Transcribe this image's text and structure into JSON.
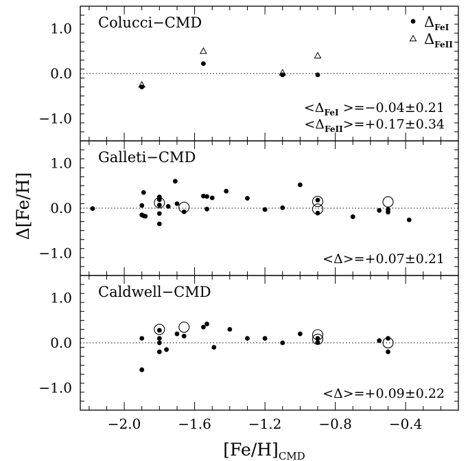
{
  "figure": {
    "y_label_main": "Δ[Fe/H]",
    "x_label_main": "[Fe/H]",
    "x_label_sub": "CMD"
  },
  "chart_data": [
    {
      "type": "scatter",
      "title": "Colucci−CMD",
      "xlim": [
        -2.25,
        -0.1
      ],
      "ylim": [
        -1.5,
        1.5
      ],
      "x_ticks": [
        -2.0,
        -1.6,
        -1.2,
        -0.8,
        -0.4
      ],
      "y_ticks": [
        1.0,
        0.0,
        -1.0
      ],
      "y_tick_labels": [
        "1.0",
        "0.0",
        "−1.0"
      ],
      "zero_line": true,
      "legend_position": "top-right",
      "legend": [
        {
          "symbol": "filled-circle",
          "main": "Δ",
          "sub": "FeI"
        },
        {
          "symbol": "open-triangle",
          "main": "Δ",
          "sub": "FeII"
        }
      ],
      "annotations": [
        {
          "a": "<Δ",
          "sub": "FeI",
          "b": " >=−0.04±0.21"
        },
        {
          "a": "<Δ",
          "sub": "FeII",
          "b": ">=+0.17±0.34"
        }
      ],
      "series": [
        {
          "name": "ΔFeI",
          "marker": "filled-circle",
          "x": [
            -1.9,
            -1.55,
            -1.1,
            -0.9
          ],
          "y": [
            -0.3,
            0.22,
            -0.03,
            -0.03
          ]
        },
        {
          "name": "ΔFeII",
          "marker": "open-triangle",
          "x": [
            -1.9,
            -1.55,
            -1.1,
            -0.9
          ],
          "y": [
            -0.25,
            0.5,
            0.02,
            0.4
          ]
        }
      ]
    },
    {
      "type": "scatter",
      "title": "Galleti−CMD",
      "xlim": [
        -2.25,
        -0.1
      ],
      "ylim": [
        -1.5,
        1.5
      ],
      "x_ticks": [
        -2.0,
        -1.6,
        -1.2,
        -0.8,
        -0.4
      ],
      "y_ticks": [
        1.0,
        0.0,
        -1.0
      ],
      "y_tick_labels": [
        "1.0",
        "0.0",
        "−1.0"
      ],
      "zero_line": true,
      "annotations": [
        {
          "a": "<Δ>=+0.07±0.21",
          "sub": "",
          "b": ""
        }
      ],
      "series": [
        {
          "marker": "filled-circle",
          "x": [
            -2.18,
            -1.9,
            -1.9,
            -1.89,
            -1.89,
            -1.88,
            -1.8,
            -1.8,
            -1.8,
            -1.8,
            -1.8,
            -1.75,
            -1.71,
            -1.7,
            -1.66,
            -1.55,
            -1.53,
            -1.53,
            -1.5,
            -1.42,
            -1.3,
            -1.2,
            -1.1,
            -1.0,
            -0.9,
            -0.9,
            -0.7,
            -0.55,
            -0.5,
            -0.5,
            -0.38
          ],
          "y": [
            -0.01,
            0.06,
            -0.15,
            -0.17,
            0.35,
            -0.18,
            0.25,
            0.19,
            0.07,
            -0.12,
            -0.35,
            0.04,
            0.6,
            0.1,
            -0.08,
            0.27,
            0.26,
            -0.02,
            0.23,
            0.38,
            0.22,
            -0.03,
            0.01,
            0.52,
            0.18,
            -0.11,
            -0.19,
            -0.05,
            -0.03,
            -0.09,
            -0.26
          ]
        },
        {
          "marker": "open-circle",
          "x": [
            -1.8,
            -1.66,
            -0.9,
            -0.9,
            -0.5
          ],
          "y": [
            0.12,
            0.02,
            0.15,
            -0.02,
            0.14
          ]
        }
      ]
    },
    {
      "type": "scatter",
      "title": "Caldwell−CMD",
      "xlim": [
        -2.25,
        -0.1
      ],
      "ylim": [
        -1.5,
        1.5
      ],
      "x_ticks": [
        -2.0,
        -1.6,
        -1.2,
        -0.8,
        -0.4
      ],
      "x_tick_labels": [
        "−2.0",
        "−1.6",
        "−1.2",
        "−0.8",
        "−0.4"
      ],
      "y_ticks": [
        1.0,
        0.0,
        -1.0
      ],
      "y_tick_labels": [
        "1.0",
        "0.0",
        "−1.0"
      ],
      "zero_line": true,
      "annotations": [
        {
          "a": "<Δ>=+0.09±0.22",
          "sub": "",
          "b": ""
        }
      ],
      "series": [
        {
          "marker": "filled-circle",
          "x": [
            -1.9,
            -1.9,
            -1.8,
            -1.8,
            -1.8,
            -1.8,
            -1.76,
            -1.7,
            -1.66,
            -1.55,
            -1.53,
            -1.49,
            -1.4,
            -1.3,
            -1.2,
            -1.1,
            -1.0,
            -0.9,
            -0.9,
            -0.55,
            -0.5,
            -0.5
          ],
          "y": [
            0.1,
            -0.6,
            0.28,
            0.1,
            0.0,
            -0.2,
            -0.15,
            0.2,
            0.15,
            0.35,
            0.42,
            -0.1,
            0.3,
            0.1,
            0.1,
            0.0,
            0.2,
            0.1,
            0.01,
            0.05,
            0.1,
            -0.2
          ]
        },
        {
          "marker": "open-circle",
          "x": [
            -1.8,
            -1.66,
            -0.9,
            -0.9,
            -0.5
          ],
          "y": [
            0.3,
            0.35,
            0.18,
            0.08,
            0.0
          ]
        }
      ]
    }
  ]
}
